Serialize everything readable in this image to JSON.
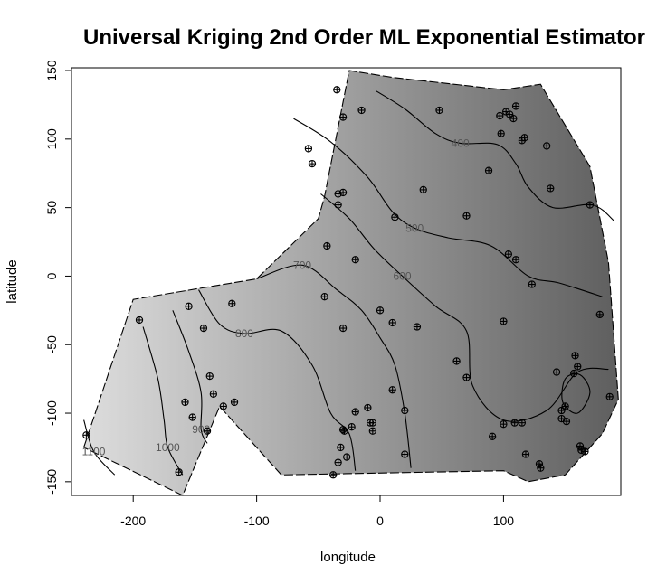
{
  "chart_data": {
    "type": "contour",
    "title": "Universal Kriging 2nd Order ML Exponential Estimator",
    "xlabel": "longitude",
    "ylabel": "latitude",
    "xlim": [
      -250,
      195
    ],
    "ylim": [
      -160,
      152
    ],
    "xticks": [
      "-200",
      "-100",
      "0",
      "100"
    ],
    "yticks": [
      "-150",
      "-100",
      "-50",
      "0",
      "50",
      "100",
      "150"
    ],
    "xtick_values": [
      -200,
      -100,
      0,
      100
    ],
    "ytick_values": [
      -150,
      -100,
      -50,
      0,
      50,
      100,
      150
    ],
    "fill_gradient": {
      "low_value_color": "#5e5e5e",
      "high_value_color": "#e0e0e0"
    },
    "region_boundary": [
      [
        -240,
        -125
      ],
      [
        -200,
        -17
      ],
      [
        -100,
        -2
      ],
      [
        -50,
        42
      ],
      [
        -45,
        58
      ],
      [
        -25,
        150
      ],
      [
        10,
        145
      ],
      [
        100,
        136
      ],
      [
        130,
        140
      ],
      [
        170,
        80
      ],
      [
        185,
        10
      ],
      [
        193,
        -90
      ],
      [
        180,
        -115
      ],
      [
        150,
        -145
      ],
      [
        120,
        -150
      ],
      [
        100,
        -142
      ],
      [
        -80,
        -145
      ],
      [
        -130,
        -95
      ],
      [
        -160,
        -160
      ]
    ],
    "contours": [
      {
        "level": "400",
        "label_at": [
          65,
          97
        ],
        "points": [
          [
            -3,
            135
          ],
          [
            20,
            122
          ],
          [
            45,
            104
          ],
          [
            65,
            97
          ],
          [
            95,
            96
          ],
          [
            110,
            82
          ],
          [
            120,
            65
          ],
          [
            140,
            50
          ],
          [
            172,
            52
          ],
          [
            190,
            40
          ]
        ]
      },
      {
        "level": "500",
        "label_at": [
          28,
          35
        ],
        "points": [
          [
            -70,
            115
          ],
          [
            -40,
            98
          ],
          [
            -10,
            72
          ],
          [
            10,
            47
          ],
          [
            28,
            35
          ],
          [
            55,
            28
          ],
          [
            90,
            22
          ],
          [
            120,
            0
          ],
          [
            145,
            -5
          ],
          [
            180,
            -15
          ]
        ]
      },
      {
        "level": "600",
        "label_at": [
          18,
          0
        ],
        "points": [
          [
            -48,
            60
          ],
          [
            -25,
            42
          ],
          [
            -5,
            20
          ],
          [
            18,
            0
          ],
          [
            45,
            -22
          ],
          [
            70,
            -40
          ],
          [
            75,
            -80
          ],
          [
            100,
            -105
          ],
          [
            135,
            -98
          ],
          [
            160,
            -70
          ],
          [
            185,
            -68
          ]
        ]
      },
      {
        "level": "700",
        "label_at": [
          -63,
          8
        ],
        "points": [
          [
            -100,
            -2
          ],
          [
            -63,
            8
          ],
          [
            -35,
            -10
          ],
          [
            -15,
            -25
          ],
          [
            0,
            -45
          ],
          [
            12,
            -65
          ],
          [
            20,
            -100
          ],
          [
            25,
            -140
          ]
        ]
      },
      {
        "level": "800",
        "label_at": [
          -110,
          -42
        ],
        "points": [
          [
            -147,
            -10
          ],
          [
            -130,
            -35
          ],
          [
            -110,
            -42
          ],
          [
            -80,
            -40
          ],
          [
            -55,
            -65
          ],
          [
            -40,
            -100
          ],
          [
            -25,
            -115
          ],
          [
            -20,
            -142
          ]
        ]
      },
      {
        "level": "900",
        "label_at": [
          -145,
          -112
        ],
        "points": [
          [
            -168,
            -25
          ],
          [
            -155,
            -55
          ],
          [
            -145,
            -85
          ],
          [
            -145,
            -112
          ],
          [
            -140,
            -122
          ]
        ]
      },
      {
        "level": "1000",
        "label_at": [
          -172,
          -125
        ],
        "points": [
          [
            -192,
            -37
          ],
          [
            -180,
            -75
          ],
          [
            -175,
            -105
          ],
          [
            -172,
            -125
          ],
          [
            -160,
            -145
          ]
        ]
      },
      {
        "level": "1100",
        "label_at": [
          -232,
          -128
        ],
        "points": [
          [
            -240,
            -105
          ],
          [
            -232,
            -128
          ],
          [
            -215,
            -145
          ]
        ]
      }
    ],
    "closed_contours": [
      {
        "points": [
          [
            150,
            -75
          ],
          [
            162,
            -72
          ],
          [
            170,
            -85
          ],
          [
            160,
            -100
          ],
          [
            148,
            -92
          ]
        ]
      }
    ],
    "points": [
      [
        -35,
        136
      ],
      [
        -30,
        116
      ],
      [
        -15,
        121
      ],
      [
        48,
        121
      ],
      [
        102,
        120
      ],
      [
        105,
        118
      ],
      [
        110,
        124
      ],
      [
        108,
        115
      ],
      [
        97,
        117
      ],
      [
        98,
        104
      ],
      [
        115,
        99
      ],
      [
        117,
        101
      ],
      [
        135,
        95
      ],
      [
        -58,
        93
      ],
      [
        -55,
        82
      ],
      [
        88,
        77
      ],
      [
        -34,
        60
      ],
      [
        -30,
        61
      ],
      [
        -34,
        52
      ],
      [
        35,
        63
      ],
      [
        138,
        64
      ],
      [
        170,
        52
      ],
      [
        12,
        43
      ],
      [
        70,
        44
      ],
      [
        -43,
        22
      ],
      [
        -20,
        12
      ],
      [
        104,
        16
      ],
      [
        110,
        12
      ],
      [
        123,
        -6
      ],
      [
        -45,
        -15
      ],
      [
        -120,
        -20
      ],
      [
        -155,
        -22
      ],
      [
        -195,
        -32
      ],
      [
        -143,
        -38
      ],
      [
        -30,
        -38
      ],
      [
        0,
        -25
      ],
      [
        10,
        -34
      ],
      [
        30,
        -37
      ],
      [
        100,
        -33
      ],
      [
        178,
        -28
      ],
      [
        62,
        -62
      ],
      [
        70,
        -74
      ],
      [
        143,
        -70
      ],
      [
        158,
        -58
      ],
      [
        160,
        -66
      ],
      [
        157,
        -71
      ],
      [
        -138,
        -73
      ],
      [
        -135,
        -86
      ],
      [
        -127,
        -95
      ],
      [
        -118,
        -92
      ],
      [
        -158,
        -92
      ],
      [
        -152,
        -103
      ],
      [
        10,
        -83
      ],
      [
        -10,
        -96
      ],
      [
        -20,
        -99
      ],
      [
        20,
        -98
      ],
      [
        -8,
        -107
      ],
      [
        -6,
        -107
      ],
      [
        -6,
        -113
      ],
      [
        -30,
        -112
      ],
      [
        -29,
        -113
      ],
      [
        -23,
        -110
      ],
      [
        -140,
        -113
      ],
      [
        -238,
        -116
      ],
      [
        147,
        -98
      ],
      [
        150,
        -95
      ],
      [
        147,
        -104
      ],
      [
        151,
        -106
      ],
      [
        186,
        -88
      ],
      [
        100,
        -108
      ],
      [
        109,
        -107
      ],
      [
        115,
        -107
      ],
      [
        91,
        -117
      ],
      [
        -32,
        -125
      ],
      [
        -34,
        -136
      ],
      [
        -27,
        -132
      ],
      [
        118,
        -130
      ],
      [
        129,
        -137
      ],
      [
        130,
        -140
      ],
      [
        162,
        -124
      ],
      [
        163,
        -127
      ],
      [
        166,
        -128
      ],
      [
        20,
        -130
      ],
      [
        -38,
        -145
      ],
      [
        -163,
        -143
      ]
    ]
  }
}
